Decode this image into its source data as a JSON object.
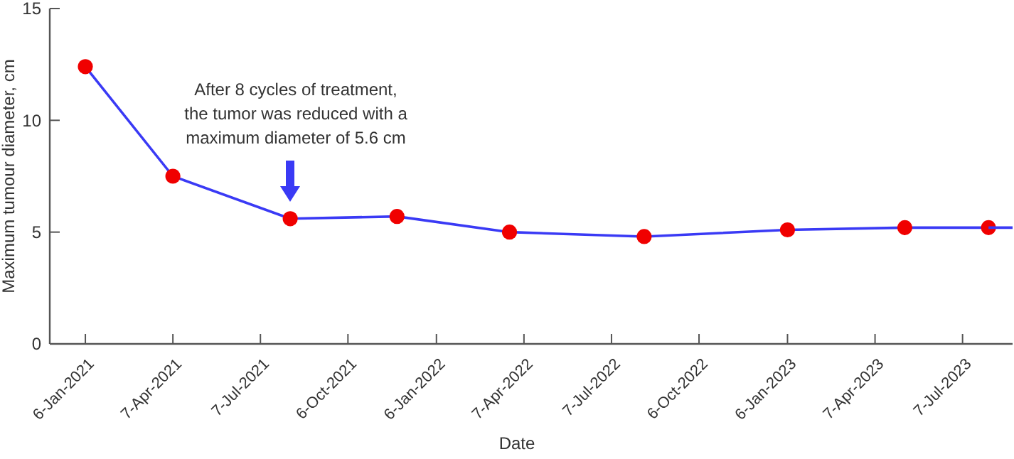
{
  "chart_data": {
    "type": "line",
    "xlabel": "Date",
    "ylabel": "Maximum tumour diameter, cm",
    "xlim": [
      "2020-11-30",
      "2023-08-28"
    ],
    "ylim": [
      0,
      15
    ],
    "yticks": [
      0,
      5,
      10,
      15
    ],
    "xticks": [
      {
        "value": "2021-01-06",
        "label": "6-Jan-2021"
      },
      {
        "value": "2021-04-07",
        "label": "7-Apr-2021"
      },
      {
        "value": "2021-07-07",
        "label": "7-Jul-2021"
      },
      {
        "value": "2021-10-06",
        "label": "6-Oct-2021"
      },
      {
        "value": "2022-01-06",
        "label": "6-Jan-2022"
      },
      {
        "value": "2022-04-07",
        "label": "7-Apr-2022"
      },
      {
        "value": "2022-07-07",
        "label": "7-Jul-2022"
      },
      {
        "value": "2022-10-06",
        "label": "6-Oct-2022"
      },
      {
        "value": "2023-01-06",
        "label": "6-Jan-2023"
      },
      {
        "value": "2023-04-07",
        "label": "7-Apr-2023"
      },
      {
        "value": "2023-07-07",
        "label": "7-Jul-2023"
      }
    ],
    "grid": false,
    "series": [
      {
        "color": "#3a3af5",
        "marker": "circle",
        "colors": [
          "#f00000",
          "#f00000",
          "#f00000",
          "#f00000",
          "#f00000",
          "#f00000",
          "#f00000",
          "#f00000",
          "#f00000"
        ],
        "x": [
          "2021-01-06",
          "2021-04-07",
          "2021-08-07",
          "2021-11-26",
          "2022-03-23",
          "2022-08-10",
          "2023-01-06",
          "2023-05-08",
          "2023-08-03"
        ],
        "values": [
          12.4,
          7.5,
          5.6,
          5.7,
          5.0,
          4.8,
          5.1,
          5.2,
          5.2
        ]
      },
      {
        "color": "#3a3af5",
        "marker": "none",
        "x": [
          "2023-08-03",
          "2023-08-28"
        ],
        "values": [
          5.2,
          5.2
        ]
      }
    ],
    "annotations": [
      "After 8 cycles of treatment,\nthe tumor was reduced with a\nmaximum diameter of 5.6 cm"
    ]
  }
}
